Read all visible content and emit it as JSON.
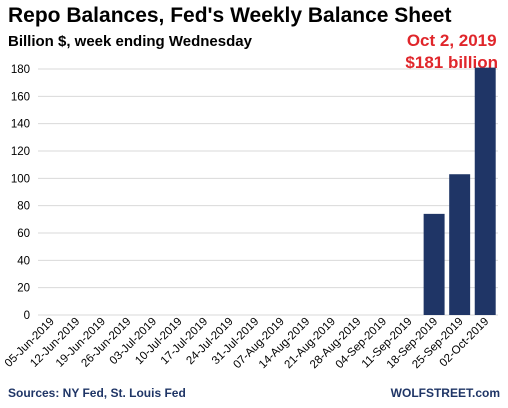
{
  "header": {
    "title": "Repo Balances, Fed's Weekly Balance Sheet",
    "subtitle": "Billion $, week ending Wednesday"
  },
  "callout": {
    "line1": "Oct 2, 2019",
    "line2": "$181 billion",
    "color": "#e0262b"
  },
  "footer": {
    "sources": "Sources: NY Fed, St. Louis Fed",
    "brand": "WOLFSTREET.com"
  },
  "colors": {
    "bar": "#1f3566",
    "grid": "#d9d9d9",
    "text_accent": "#1f3566"
  },
  "chart_data": {
    "type": "bar",
    "title": "Repo Balances, Fed's Weekly Balance Sheet",
    "subtitle": "Billion $, week ending Wednesday",
    "xlabel": "",
    "ylabel": "",
    "ylim": [
      0,
      180
    ],
    "yticks": [
      0,
      20,
      40,
      60,
      80,
      100,
      120,
      140,
      160,
      180
    ],
    "grid": true,
    "categories": [
      "05-Jun-2019",
      "12-Jun-2019",
      "19-Jun-2019",
      "26-Jun-2019",
      "03-Jul-2019",
      "10-Jul-2019",
      "17-Jul-2019",
      "24-Jul-2019",
      "31-Jul-2019",
      "07-Aug-2019",
      "14-Aug-2019",
      "21-Aug-2019",
      "28-Aug-2019",
      "04-Sep-2019",
      "11-Sep-2019",
      "18-Sep-2019",
      "25-Sep-2019",
      "02-Oct-2019"
    ],
    "values": [
      0,
      0,
      0,
      0,
      0,
      0,
      0,
      0,
      0,
      0,
      0,
      0,
      0,
      0,
      0,
      74,
      103,
      181
    ]
  }
}
